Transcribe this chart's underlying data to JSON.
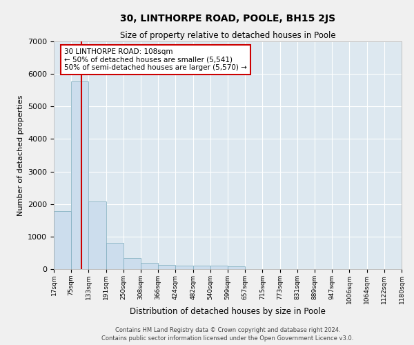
{
  "title": "30, LINTHORPE ROAD, POOLE, BH15 2JS",
  "subtitle": "Size of property relative to detached houses in Poole",
  "xlabel": "Distribution of detached houses by size in Poole",
  "ylabel": "Number of detached properties",
  "footer_line1": "Contains HM Land Registry data © Crown copyright and database right 2024.",
  "footer_line2": "Contains public sector information licensed under the Open Government Licence v3.0.",
  "bar_color": "#ccdded",
  "bar_edge_color": "#7aaabb",
  "background_color": "#dde8f0",
  "fig_background": "#f0f0f0",
  "bins": [
    "17sqm",
    "75sqm",
    "133sqm",
    "191sqm",
    "250sqm",
    "308sqm",
    "366sqm",
    "424sqm",
    "482sqm",
    "540sqm",
    "599sqm",
    "657sqm",
    "715sqm",
    "773sqm",
    "831sqm",
    "889sqm",
    "947sqm",
    "1006sqm",
    "1064sqm",
    "1122sqm",
    "1180sqm"
  ],
  "values": [
    1780,
    5780,
    2080,
    800,
    340,
    200,
    130,
    110,
    100,
    100,
    95,
    0,
    0,
    0,
    0,
    0,
    0,
    0,
    0,
    0
  ],
  "annotation_text_line1": "30 LINTHORPE ROAD: 108sqm",
  "annotation_text_line2": "← 50% of detached houses are smaller (5,541)",
  "annotation_text_line3": "50% of semi-detached houses are larger (5,570) →",
  "ylim": [
    0,
    7000
  ],
  "grid_color": "#ffffff",
  "vline_color": "#cc0000",
  "vline_pos": 1.569
}
